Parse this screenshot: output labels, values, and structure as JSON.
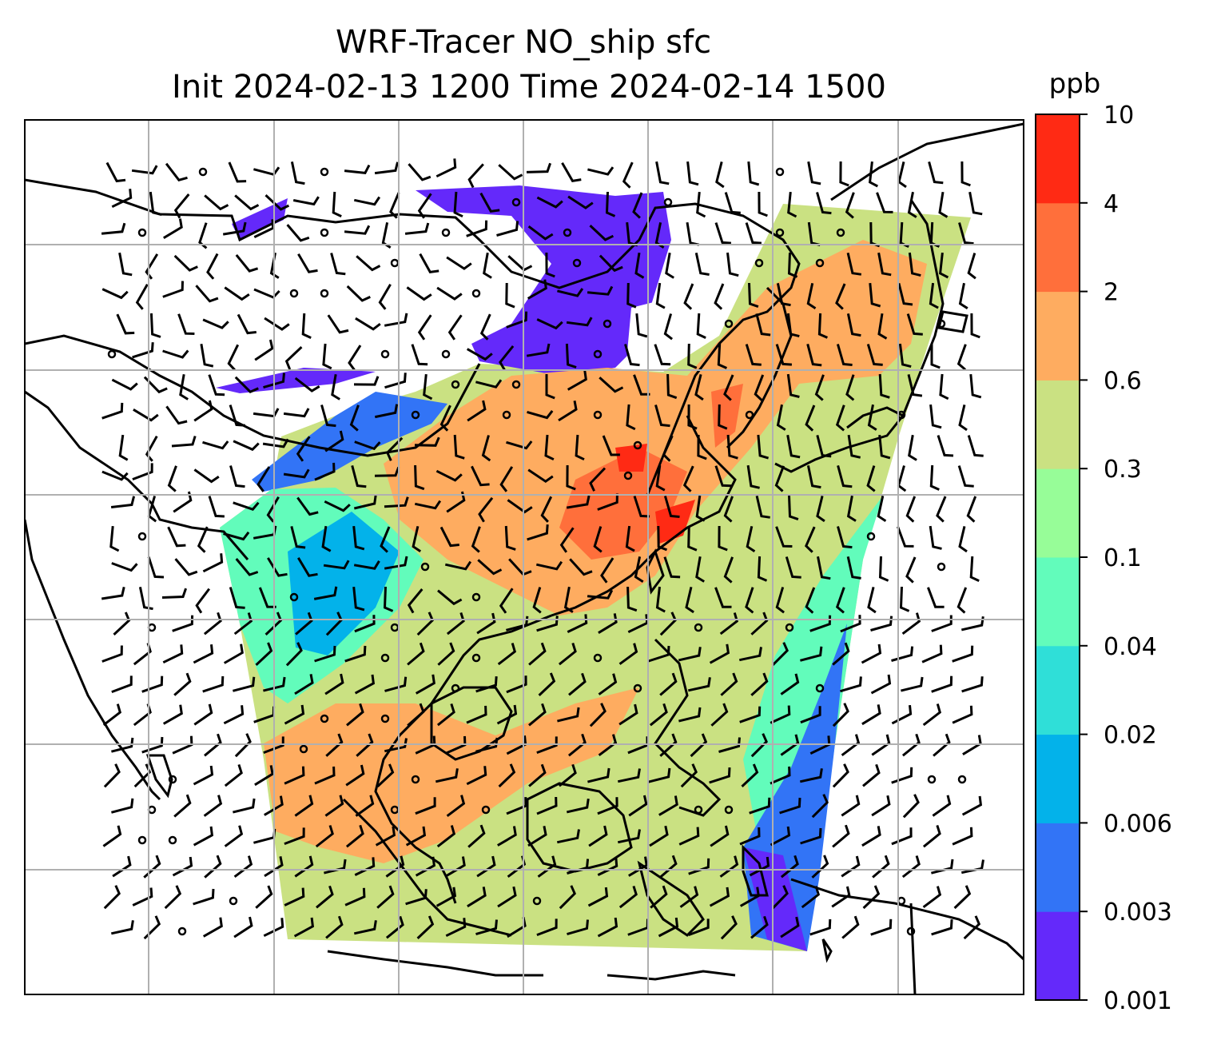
{
  "title": {
    "line1": "WRF-Tracer NO_ship sfc",
    "line2": "Init 2024-02-13 1200 Time 2024-02-14 1500"
  },
  "colorbar": {
    "unit": "ppb",
    "levels": [
      "0.001",
      "0.003",
      "0.006",
      "0.02",
      "0.04",
      "0.1",
      "0.3",
      "0.6",
      "2",
      "4",
      "10"
    ],
    "colors": [
      "#6429fa",
      "#3274f6",
      "#03b2ea",
      "#2fdfd8",
      "#62fcbb",
      "#97fd98",
      "#cae182",
      "#feac60",
      "#ff6f3b",
      "#ff2a14"
    ]
  },
  "map": {
    "gridlines": true,
    "wind_barbs": true,
    "coastlines": true
  }
}
